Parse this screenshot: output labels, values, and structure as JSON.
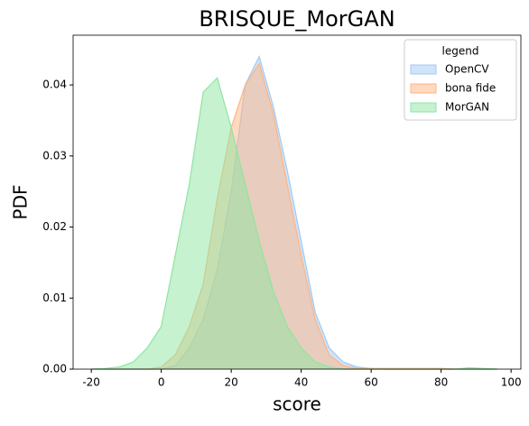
{
  "chart_data": {
    "type": "area",
    "title": "BRISQUE_MorGAN",
    "x_label": "score",
    "y_label": "PDF",
    "x": [
      -20,
      -16,
      -12,
      -8,
      -4,
      0,
      4,
      8,
      12,
      16,
      20,
      24,
      28,
      32,
      36,
      40,
      44,
      48,
      52,
      56,
      60,
      64,
      68,
      72,
      76,
      80,
      84,
      88,
      92,
      96
    ],
    "series": [
      {
        "name": "OpenCV",
        "color": "#a1c9f4",
        "values": [
          0,
          0,
          0,
          0,
          0,
          0,
          0.0005,
          0.003,
          0.007,
          0.014,
          0.025,
          0.04,
          0.044,
          0.037,
          0.028,
          0.018,
          0.008,
          0.003,
          0.001,
          0.0003,
          0.0001,
          0,
          0,
          0,
          0,
          0,
          0,
          0,
          0,
          0
        ]
      },
      {
        "name": "bona fide",
        "color": "#ffb482",
        "values": [
          0,
          0,
          0,
          0,
          0,
          0.0003,
          0.002,
          0.006,
          0.012,
          0.024,
          0.034,
          0.04,
          0.043,
          0.036,
          0.026,
          0.016,
          0.007,
          0.002,
          0.0005,
          0.0001,
          0.0001,
          0.0001,
          0.0001,
          0.0001,
          0.0001,
          0.0001,
          0,
          0,
          0,
          0
        ]
      },
      {
        "name": "MorGAN",
        "color": "#8de5a1",
        "values": [
          0,
          0.0001,
          0.0003,
          0.001,
          0.003,
          0.006,
          0.016,
          0.026,
          0.039,
          0.041,
          0.034,
          0.026,
          0.018,
          0.011,
          0.006,
          0.003,
          0.001,
          0.0003,
          0,
          0,
          0,
          0,
          0,
          0,
          0,
          0,
          0,
          0.0002,
          0.0001,
          0
        ]
      }
    ],
    "legend_title": "legend",
    "legend": "upper right",
    "xlim": [
      -25.2,
      102.8
    ],
    "xticks": [
      -20,
      0,
      20,
      40,
      60,
      80,
      100
    ],
    "ylim": [
      0,
      0.047
    ],
    "yticks": [
      {
        "value": 0,
        "label": "0.00"
      },
      {
        "value": 0.01,
        "label": "0.01"
      },
      {
        "value": 0.02,
        "label": "0.02"
      },
      {
        "value": 0.03,
        "label": "0.03"
      },
      {
        "value": 0.04,
        "label": "0.04"
      }
    ]
  }
}
